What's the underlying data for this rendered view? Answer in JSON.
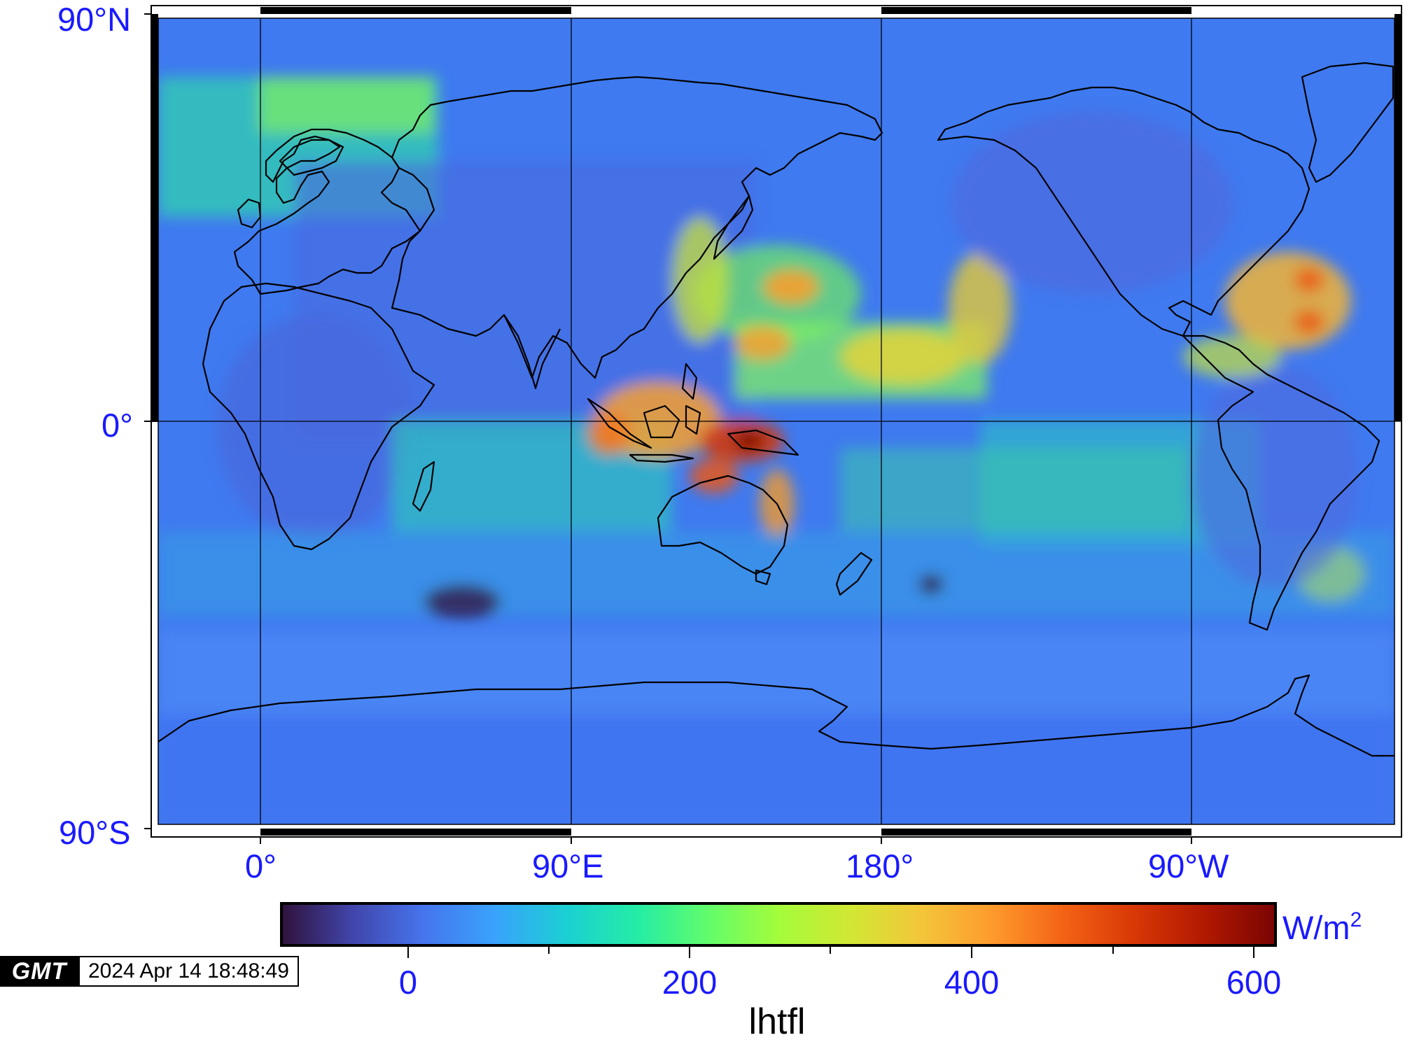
{
  "map": {
    "projection": "cylindrical equidistant",
    "lat_labels": [
      "90°N",
      "0°",
      "90°S"
    ],
    "lon_labels": [
      "0°",
      "90°E",
      "180°",
      "90°W"
    ],
    "frame_style": "fancy black/white",
    "gridlines": true,
    "field_colors": {
      "low": "#3b3ec2",
      "ocean_base": "#3f79f0",
      "mid": "#2bd3c0",
      "green": "#4ef07c",
      "yellow": "#d7e23a",
      "orange": "#f7a030",
      "red": "#d23a10",
      "dark_red": "#7a0403"
    }
  },
  "colorbar": {
    "ticks": [
      "0",
      "200",
      "400",
      "600"
    ],
    "unit": "W/m",
    "unit_sup": "2",
    "variable": "lhtfl",
    "stops": [
      "#30123b",
      "#4145ab",
      "#4675ed",
      "#39a2fc",
      "#1bcfd4",
      "#24eca6",
      "#61fc6c",
      "#a4fc3b",
      "#d1e834",
      "#f3c63a",
      "#fe9b2d",
      "#f36315",
      "#d93806",
      "#b11901",
      "#7a0403"
    ]
  },
  "timestamp": {
    "logo": "GMT",
    "date": "2024 Apr 14 18:48:49"
  }
}
